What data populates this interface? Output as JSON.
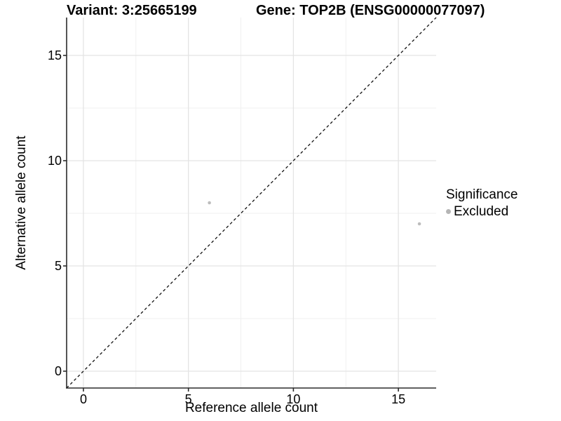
{
  "chart_data": {
    "type": "scatter",
    "title_left": "Variant: 3:25665199",
    "title_right": "Gene: TOP2B (ENSG00000077097)",
    "xlabel": "Reference allele count",
    "ylabel": "Alternative allele count",
    "xlim": [
      -0.8,
      16.8
    ],
    "ylim": [
      -0.8,
      16.8
    ],
    "x_ticks": [
      0,
      5,
      10,
      15
    ],
    "y_ticks": [
      0,
      5,
      10,
      15
    ],
    "x_minor_ticks": [
      2.5,
      7.5,
      12.5
    ],
    "y_minor_ticks": [
      2.5,
      7.5,
      12.5
    ],
    "grid": true,
    "series": [
      {
        "name": "Excluded",
        "color": "#bdbdbd",
        "points": [
          {
            "x": 6,
            "y": 8
          },
          {
            "x": 16,
            "y": 7
          }
        ]
      }
    ],
    "reference_line": {
      "type": "identity",
      "slope": 1,
      "intercept": 0,
      "style": "dashed",
      "color": "#111111"
    },
    "legend": {
      "position": "right",
      "title": "Significance",
      "items": [
        {
          "label": "Excluded",
          "color": "#b5b5b5"
        }
      ]
    },
    "colors": {
      "background": "#ffffff",
      "grid_major": "#e4e4e4",
      "grid_minor": "#efefef",
      "axis_line": "#2b2b2b",
      "point": "#bdbdbd"
    }
  }
}
